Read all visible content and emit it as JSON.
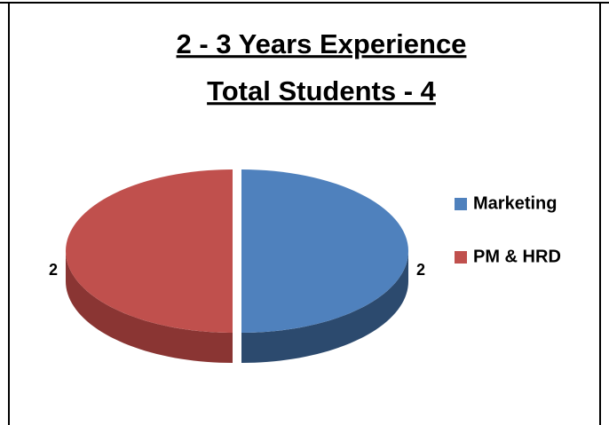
{
  "chart_data": {
    "type": "pie3d",
    "title": "2 - 3 Years Experience",
    "subtitle": "Total Students - 4",
    "categories": [
      "Marketing",
      "PM & HRD"
    ],
    "values": [
      2,
      2
    ],
    "colors": [
      "#4f81bd",
      "#c0504d"
    ],
    "side_colors": [
      "#2c4a6e",
      "#8a3533"
    ],
    "legend": "right"
  }
}
